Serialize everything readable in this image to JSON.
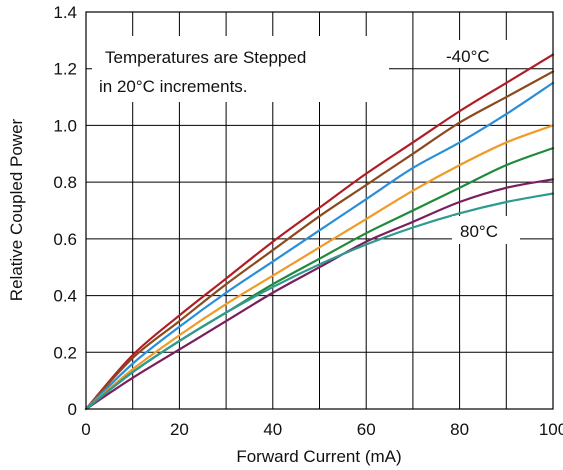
{
  "chart_data": {
    "type": "line",
    "title": "",
    "xlabel": "Forward Current (mA)",
    "ylabel": "Relative Coupled Power",
    "xlim": [
      0,
      100
    ],
    "ylim": [
      0,
      1.4
    ],
    "x_ticks": [
      0,
      20,
      40,
      60,
      80,
      100
    ],
    "x_tick_labels": [
      "0",
      "20",
      "40",
      "60",
      "80",
      "100"
    ],
    "y_ticks": [
      0,
      0.2,
      0.4,
      0.6,
      0.8,
      1.0,
      1.2,
      1.4
    ],
    "y_tick_labels": [
      "0",
      "0.2",
      "0.4",
      "0.6",
      "0.8",
      "1.0",
      "1.2",
      "1.4"
    ],
    "x_gridlines": [
      10,
      20,
      30,
      40,
      50,
      60,
      70,
      80,
      90
    ],
    "y_gridlines": [
      0.2,
      0.4,
      0.6,
      0.8,
      1.0,
      1.2
    ],
    "grid": true,
    "annotations": {
      "note_line1": "Temperatures are Stepped",
      "note_line2": "in 20°C increments.",
      "label_top": "-40°C",
      "label_bottom": "80°C"
    },
    "x": [
      0,
      10,
      20,
      30,
      40,
      50,
      60,
      70,
      80,
      90,
      100
    ],
    "series": [
      {
        "color": "#b01e24",
        "values": [
          0,
          0.19,
          0.33,
          0.46,
          0.59,
          0.71,
          0.83,
          0.94,
          1.05,
          1.15,
          1.25
        ]
      },
      {
        "color": "#8a4a1e",
        "values": [
          0,
          0.18,
          0.31,
          0.44,
          0.56,
          0.68,
          0.79,
          0.9,
          1.01,
          1.1,
          1.19
        ]
      },
      {
        "color": "#2a8fd8",
        "values": [
          0,
          0.16,
          0.29,
          0.41,
          0.52,
          0.63,
          0.74,
          0.85,
          0.94,
          1.04,
          1.15
        ]
      },
      {
        "color": "#f09a28",
        "values": [
          0,
          0.14,
          0.26,
          0.37,
          0.47,
          0.57,
          0.67,
          0.77,
          0.86,
          0.94,
          1.0
        ]
      },
      {
        "color": "#1f8a3a",
        "values": [
          0,
          0.13,
          0.24,
          0.34,
          0.44,
          0.53,
          0.62,
          0.7,
          0.78,
          0.86,
          0.92
        ]
      },
      {
        "color": "#7a1f5e",
        "values": [
          0,
          0.11,
          0.21,
          0.31,
          0.41,
          0.5,
          0.59,
          0.66,
          0.73,
          0.78,
          0.81
        ]
      },
      {
        "color": "#2f9a8e",
        "values": [
          0,
          0.13,
          0.24,
          0.34,
          0.43,
          0.51,
          0.58,
          0.64,
          0.69,
          0.73,
          0.76
        ]
      }
    ]
  }
}
